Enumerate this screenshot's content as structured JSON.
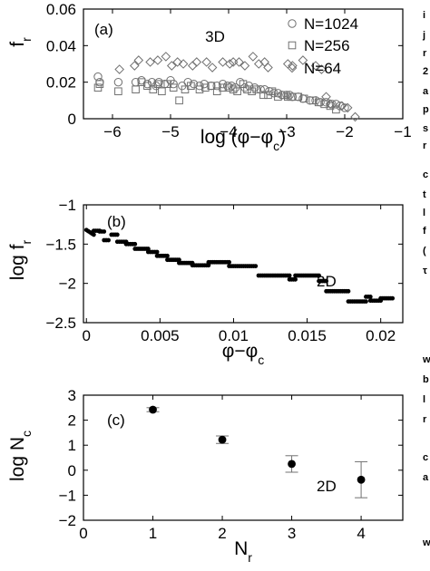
{
  "chart_data": [
    {
      "panel": "(a)",
      "type": "scatter",
      "annotation": "3D",
      "xlabel": "log (φ−φ",
      "xlabel_sub": "c",
      "xlabel_close": ")",
      "ylabel": "f",
      "ylabel_sub": "r",
      "xlim": [
        -6.5,
        -1
      ],
      "ylim": [
        0,
        0.06
      ],
      "xticks": [
        -6,
        -5,
        -4,
        -3,
        -2,
        -1
      ],
      "yticks": [
        0,
        0.02,
        0.04,
        0.06
      ],
      "ytick_labels": [
        "0",
        "0.02",
        "0.04",
        "0.06"
      ],
      "legend_position": "top-right",
      "series": [
        {
          "name": "N=1024",
          "marker": "circle",
          "points": [
            [
              -6.25,
              0.023
            ],
            [
              -6.22,
              0.02
            ],
            [
              -5.9,
              0.02
            ],
            [
              -5.6,
              0.02
            ],
            [
              -5.5,
              0.021
            ],
            [
              -5.4,
              0.019
            ],
            [
              -5.32,
              0.02
            ],
            [
              -5.25,
              0.018
            ],
            [
              -5.2,
              0.02
            ],
            [
              -5.1,
              0.019
            ],
            [
              -5.0,
              0.021
            ],
            [
              -4.95,
              0.019
            ],
            [
              -4.8,
              0.018
            ],
            [
              -4.7,
              0.02
            ],
            [
              -4.6,
              0.019
            ],
            [
              -4.5,
              0.018
            ],
            [
              -4.42,
              0.019
            ],
            [
              -4.3,
              0.018
            ],
            [
              -4.2,
              0.018
            ],
            [
              -4.1,
              0.019
            ],
            [
              -4.02,
              0.018
            ],
            [
              -3.95,
              0.018
            ],
            [
              -3.88,
              0.017
            ],
            [
              -3.8,
              0.02
            ],
            [
              -3.72,
              0.017
            ],
            [
              -3.65,
              0.018
            ],
            [
              -3.55,
              0.017
            ],
            [
              -3.45,
              0.016
            ],
            [
              -3.38,
              0.016
            ],
            [
              -3.3,
              0.015
            ],
            [
              -3.22,
              0.014
            ],
            [
              -3.15,
              0.014
            ],
            [
              -3.08,
              0.013
            ],
            [
              -3.0,
              0.013
            ],
            [
              -2.95,
              0.013
            ],
            [
              -2.9,
              0.012
            ],
            [
              -2.8,
              0.012
            ],
            [
              -2.72,
              0.011
            ],
            [
              -2.6,
              0.01
            ],
            [
              -2.5,
              0.01
            ],
            [
              -2.42,
              0.009
            ],
            [
              -2.32,
              0.009
            ],
            [
              -2.22,
              0.008
            ],
            [
              -2.15,
              0.008
            ],
            [
              -2.08,
              0.007
            ],
            [
              -2.0,
              0.006
            ]
          ]
        },
        {
          "name": "N=256",
          "marker": "square",
          "points": [
            [
              -6.25,
              0.017
            ],
            [
              -6.22,
              0.019
            ],
            [
              -5.9,
              0.015
            ],
            [
              -5.6,
              0.016
            ],
            [
              -5.5,
              0.02
            ],
            [
              -5.4,
              0.018
            ],
            [
              -5.3,
              0.016
            ],
            [
              -5.22,
              0.019
            ],
            [
              -5.15,
              0.015
            ],
            [
              -5.05,
              0.019
            ],
            [
              -4.95,
              0.017
            ],
            [
              -4.85,
              0.01
            ],
            [
              -4.75,
              0.016
            ],
            [
              -4.65,
              0.018
            ],
            [
              -4.5,
              0.016
            ],
            [
              -4.4,
              0.017
            ],
            [
              -4.3,
              0.018
            ],
            [
              -4.2,
              0.015
            ],
            [
              -4.1,
              0.017
            ],
            [
              -4.0,
              0.017
            ],
            [
              -3.92,
              0.016
            ],
            [
              -3.85,
              0.015
            ],
            [
              -3.75,
              0.019
            ],
            [
              -3.68,
              0.016
            ],
            [
              -3.6,
              0.015
            ],
            [
              -3.52,
              0.016
            ],
            [
              -3.4,
              0.013
            ],
            [
              -3.32,
              0.013
            ],
            [
              -3.25,
              0.015
            ],
            [
              -3.15,
              0.012
            ],
            [
              -3.05,
              0.013
            ],
            [
              -2.98,
              0.012
            ],
            [
              -2.92,
              0.012
            ],
            [
              -2.8,
              0.012
            ],
            [
              -2.7,
              0.011
            ],
            [
              -2.55,
              0.01
            ],
            [
              -2.45,
              0.009
            ],
            [
              -2.35,
              0.008
            ],
            [
              -2.25,
              0.007
            ],
            [
              -2.15,
              0.005
            ]
          ]
        },
        {
          "name": "N=64",
          "marker": "diamond",
          "points": [
            [
              -5.88,
              0.027
            ],
            [
              -5.62,
              0.029
            ],
            [
              -5.55,
              0.032
            ],
            [
              -5.35,
              0.031
            ],
            [
              -5.22,
              0.032
            ],
            [
              -5.08,
              0.034
            ],
            [
              -4.98,
              0.029
            ],
            [
              -4.88,
              0.031
            ],
            [
              -4.78,
              0.03
            ],
            [
              -4.62,
              0.029
            ],
            [
              -4.55,
              0.031
            ],
            [
              -4.38,
              0.031
            ],
            [
              -4.28,
              0.028
            ],
            [
              -4.1,
              0.031
            ],
            [
              -3.98,
              0.03
            ],
            [
              -3.92,
              0.031
            ],
            [
              -3.82,
              0.031
            ],
            [
              -3.72,
              0.029
            ],
            [
              -3.58,
              0.034
            ],
            [
              -3.48,
              0.03
            ],
            [
              -3.38,
              0.031
            ],
            [
              -3.32,
              0.028
            ],
            [
              -2.98,
              0.03
            ],
            [
              -2.9,
              0.029
            ],
            [
              -2.72,
              0.032
            ],
            [
              -2.5,
              0.029
            ],
            [
              -2.4,
              0.027
            ],
            [
              -2.32,
              0.012
            ],
            [
              -2.25,
              0.008
            ],
            [
              -2.05,
              0.007
            ],
            [
              -1.95,
              0.006
            ],
            [
              -1.82,
              0.001
            ]
          ]
        }
      ]
    },
    {
      "panel": "(b)",
      "type": "scatter",
      "annotation": "2D",
      "xlabel": "φ−φ",
      "xlabel_sub": "c",
      "ylabel": "log f",
      "ylabel_sub": "r",
      "xlim": [
        -0.0002,
        0.0215
      ],
      "ylim": [
        -2.5,
        -1
      ],
      "xticks": [
        0,
        0.005,
        0.01,
        0.015,
        0.02
      ],
      "xtick_labels": [
        "0",
        "0.005",
        "0.01",
        "0.015",
        "0.02"
      ],
      "yticks": [
        -2.5,
        -2,
        -1.5,
        -1
      ],
      "ytick_labels": [
        "−2.5",
        "−2",
        "−1.5",
        "−1"
      ],
      "series": [
        {
          "marker": "filled-circle",
          "segments": [
            [
              0.0,
              0.0005,
              -1.32,
              -1.38
            ],
            [
              0.0005,
              0.0009,
              -1.33,
              -1.33
            ],
            [
              0.0009,
              0.0012,
              -1.34,
              -1.34
            ],
            [
              0.0012,
              0.0015,
              -1.45,
              -1.45
            ],
            [
              0.0017,
              0.0021,
              -1.38,
              -1.38
            ],
            [
              0.0021,
              0.0027,
              -1.47,
              -1.47
            ],
            [
              0.0027,
              0.0033,
              -1.5,
              -1.5
            ],
            [
              0.0033,
              0.0042,
              -1.56,
              -1.56
            ],
            [
              0.0042,
              0.0048,
              -1.6,
              -1.6
            ],
            [
              0.0048,
              0.0055,
              -1.65,
              -1.65
            ],
            [
              0.0055,
              0.0063,
              -1.7,
              -1.7
            ],
            [
              0.0063,
              0.0072,
              -1.74,
              -1.74
            ],
            [
              0.0072,
              0.0083,
              -1.77,
              -1.77
            ],
            [
              0.0083,
              0.0097,
              -1.73,
              -1.73
            ],
            [
              0.0097,
              0.0115,
              -1.78,
              -1.78
            ],
            [
              0.0117,
              0.0138,
              -1.9,
              -1.9
            ],
            [
              0.0138,
              0.0142,
              -1.95,
              -1.95
            ],
            [
              0.0142,
              0.0158,
              -1.9,
              -1.9
            ],
            [
              0.0158,
              0.0163,
              -1.97,
              -1.97
            ],
            [
              0.0163,
              0.0178,
              -2.1,
              -2.1
            ],
            [
              0.0178,
              0.019,
              -2.23,
              -2.23
            ],
            [
              0.019,
              0.0193,
              -2.17,
              -2.17
            ],
            [
              0.0193,
              0.02,
              -2.22,
              -2.22
            ],
            [
              0.02,
              0.0208,
              -2.19,
              -2.19
            ]
          ]
        }
      ]
    },
    {
      "panel": "(c)",
      "type": "scatter",
      "annotation": "2D",
      "xlabel": "N",
      "xlabel_sub": "r",
      "ylabel": "log N",
      "ylabel_sub": "c",
      "xlim": [
        0,
        4.6
      ],
      "ylim": [
        -2,
        3
      ],
      "xticks": [
        0,
        1,
        2,
        3,
        4
      ],
      "yticks": [
        -2,
        -1,
        0,
        1,
        2,
        3
      ],
      "ytick_labels": [
        "−2",
        "−1",
        "0",
        "1",
        "2",
        "3"
      ],
      "series": [
        {
          "marker": "filled-circle",
          "points": [
            {
              "x": 1,
              "y": 2.42,
              "err": 0.08
            },
            {
              "x": 2,
              "y": 1.22,
              "err": 0.15
            },
            {
              "x": 3,
              "y": 0.25,
              "err": 0.33
            },
            {
              "x": 4,
              "y": -0.38,
              "err": 0.72
            }
          ]
        }
      ]
    }
  ],
  "side_text": [
    "i",
    "j",
    "r",
    "2",
    "a",
    "p",
    "s",
    "r",
    "c",
    "t",
    "l",
    "f",
    "(",
    "τ",
    "w",
    "b",
    "l",
    "r",
    "c",
    "a",
    "w"
  ]
}
